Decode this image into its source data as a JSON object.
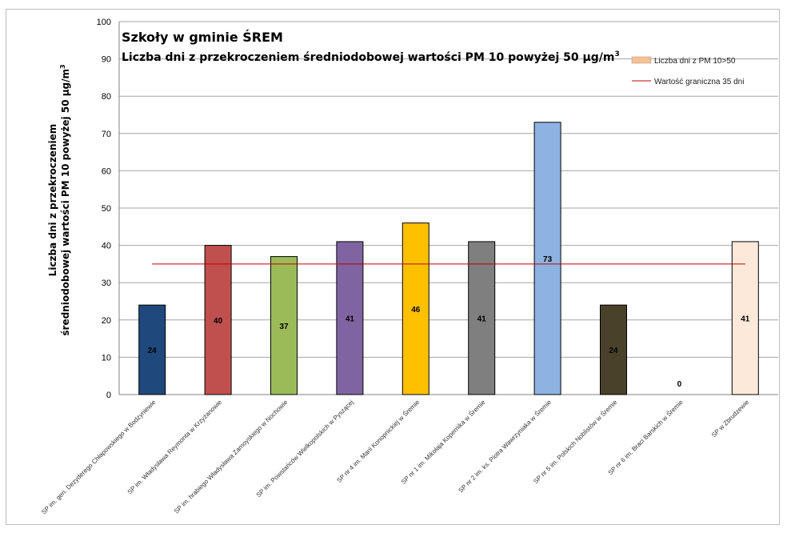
{
  "chart_data": {
    "type": "bar",
    "title": "Szkoły w gminie ŚREM",
    "subtitle": "Liczba dni z przekroczeniem średniodobowej wartości PM 10 powyżej 50 µg/m",
    "subtitle_sup": "3",
    "ylabel_line1": "Liczba dni z przekroczeniem",
    "ylabel_line2": "średniodobowej wartości PM 10 powyżej 50 µg/m",
    "ylabel_sup": "3",
    "ylim": [
      0,
      100
    ],
    "yticks": [
      0,
      10,
      20,
      30,
      40,
      50,
      60,
      70,
      80,
      90,
      100
    ],
    "grid": true,
    "categories": [
      "SP im. gen. Dezyderego Chłapowskiego w Bodzyniewie",
      "SP im. Władysława Reymonta w Krzyżanowie",
      "SP im. hrabiego Władysława Zamoyskiego w Nochowie",
      "SP im. Powstańców Wielkopolskich w Pyszącej",
      "SP nr 4 im. Marii Konopnickiej w Śremie",
      "SP nr 1 im. Mikołaja Kopernika w Śremie",
      "SP nr 2 im. ks. Piotra Wawrzyniaka w Śremie",
      "SP nr 5 im. Polskich Noblistów w Śremie",
      "SP nr 6 im. Braci Barskich w Śremie",
      "SP w Zbrudzewie"
    ],
    "values": [
      24,
      40,
      37,
      41,
      46,
      41,
      73,
      24,
      0,
      41
    ],
    "colors": [
      "#1f497d",
      "#c0504d",
      "#9bbb59",
      "#8064a2",
      "#ffc000",
      "#7f7f7f",
      "#8db3e2",
      "#4a412a",
      "#f79646",
      "#fde9d9"
    ],
    "series": [
      {
        "name": "Liczba dni z PM 10>50",
        "color": "#fac090"
      }
    ],
    "threshold": {
      "name": "Wartość graniczna 35 dni",
      "value": 35,
      "color": "#c00000"
    },
    "legend_position": "top-right"
  }
}
